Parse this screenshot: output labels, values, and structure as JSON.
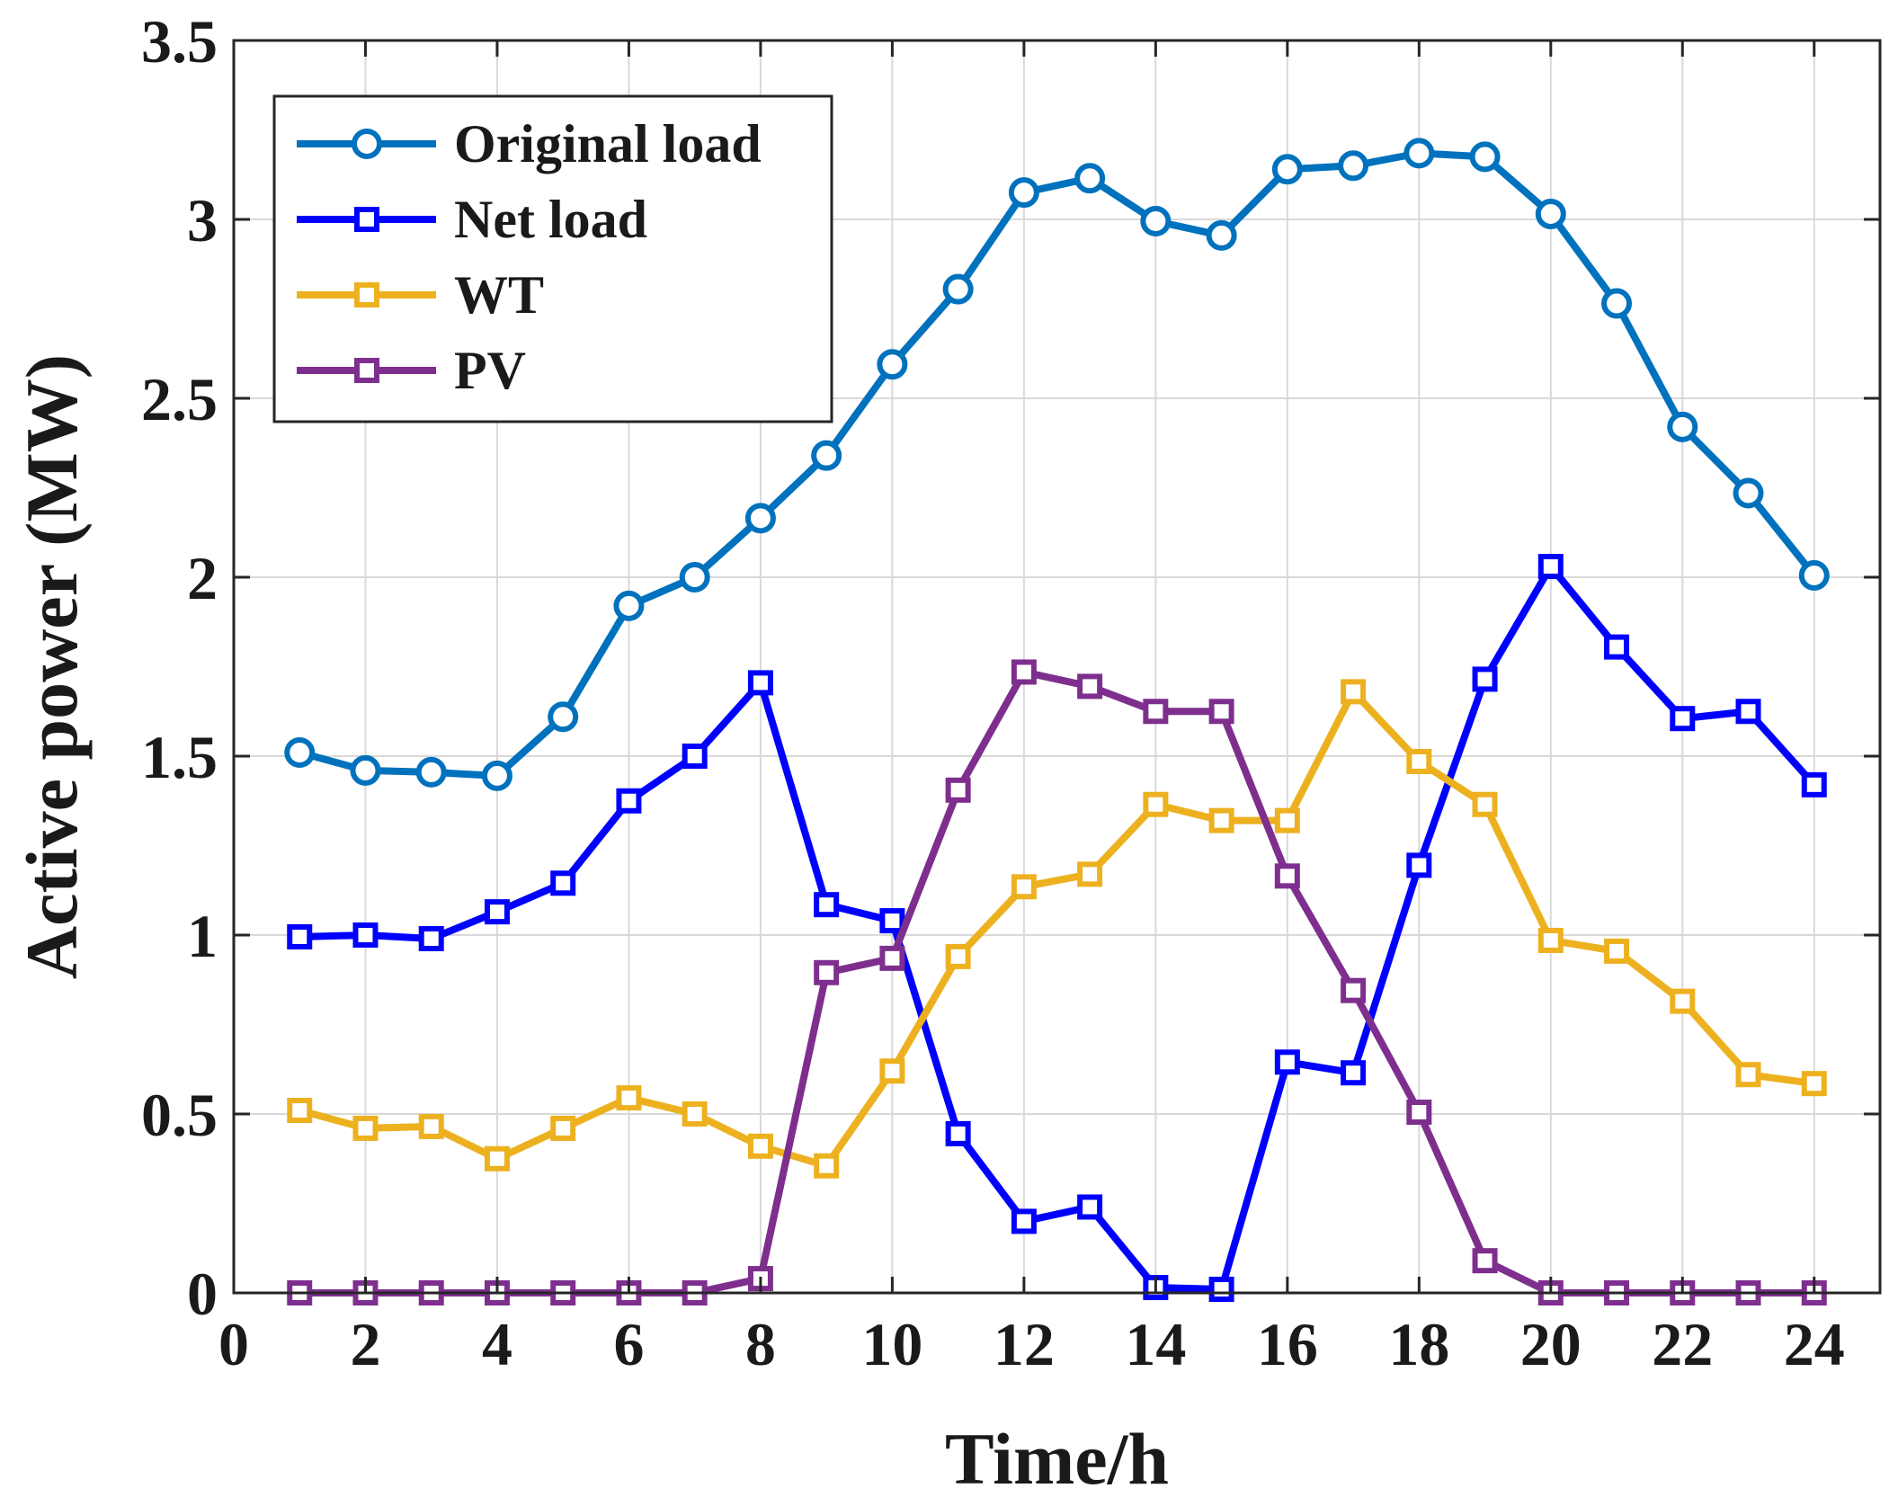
{
  "chart_data": {
    "type": "line",
    "xlabel": "Time/h",
    "ylabel": "Active power (MW)",
    "xlim": [
      0,
      25
    ],
    "ylim": [
      0,
      3.5
    ],
    "xticks": [
      0,
      2,
      4,
      6,
      8,
      10,
      12,
      14,
      16,
      18,
      20,
      22,
      24
    ],
    "yticks": [
      0,
      0.5,
      1,
      1.5,
      2,
      2.5,
      3,
      3.5
    ],
    "xtick_labels": [
      "0",
      "2",
      "4",
      "6",
      "8",
      "10",
      "12",
      "14",
      "16",
      "18",
      "20",
      "22",
      "24"
    ],
    "ytick_labels": [
      "0",
      "0.5",
      "1",
      "1.5",
      "2",
      "2.5",
      "3",
      "3.5"
    ],
    "grid": true,
    "legend_position": "top-left",
    "x": [
      1,
      2,
      3,
      4,
      5,
      6,
      7,
      8,
      9,
      10,
      11,
      12,
      13,
      14,
      15,
      16,
      17,
      18,
      19,
      20,
      21,
      22,
      23,
      24
    ],
    "series": [
      {
        "name": "Original load",
        "color": "#0072BD",
        "marker": "circle",
        "values": [
          1.51,
          1.46,
          1.455,
          1.445,
          1.61,
          1.92,
          2.0,
          2.165,
          2.34,
          2.595,
          2.805,
          3.075,
          3.115,
          2.995,
          2.955,
          3.14,
          3.15,
          3.185,
          3.175,
          3.015,
          2.765,
          2.42,
          2.235,
          2.005
        ]
      },
      {
        "name": "Net load",
        "color": "#0000FF",
        "marker": "square",
        "values": [
          0.995,
          1.0,
          0.99,
          1.065,
          1.145,
          1.375,
          1.5,
          1.705,
          1.085,
          1.04,
          0.445,
          0.2,
          0.24,
          0.015,
          0.01,
          0.645,
          0.615,
          1.195,
          1.715,
          2.03,
          1.805,
          1.605,
          1.625,
          1.42
        ]
      },
      {
        "name": "WT",
        "color": "#EDB120",
        "marker": "square",
        "values": [
          0.51,
          0.46,
          0.465,
          0.375,
          0.46,
          0.545,
          0.5,
          0.41,
          0.355,
          0.62,
          0.94,
          1.135,
          1.17,
          1.365,
          1.32,
          1.32,
          1.68,
          1.485,
          1.365,
          0.985,
          0.955,
          0.815,
          0.61,
          0.585
        ]
      },
      {
        "name": "PV",
        "color": "#7E2F8E",
        "marker": "square",
        "values": [
          0.0,
          0.0,
          0.0,
          0.0,
          0.0,
          0.0,
          0.0,
          0.04,
          0.895,
          0.935,
          1.405,
          1.735,
          1.695,
          1.625,
          1.625,
          1.165,
          0.845,
          0.505,
          0.09,
          0.0,
          0.0,
          0.0,
          0.0,
          0.0
        ]
      }
    ]
  }
}
